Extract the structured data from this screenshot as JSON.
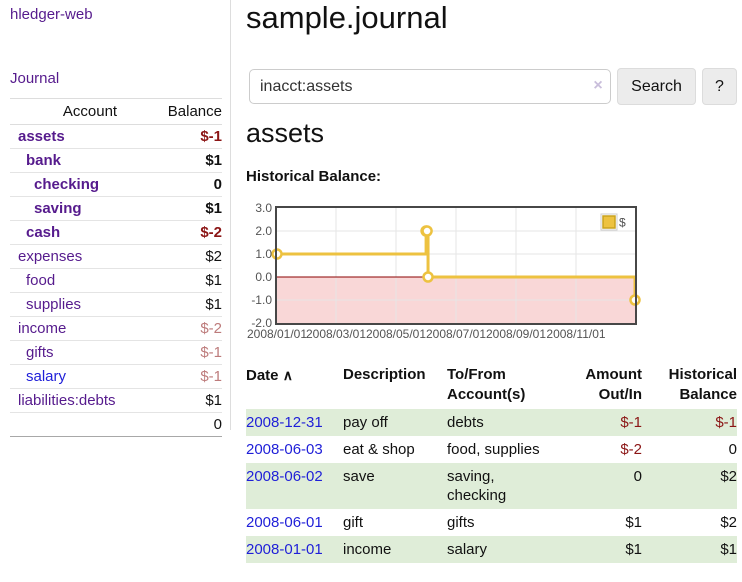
{
  "colors": {
    "brand_purple": "#561b8d",
    "link_blue": "#1f1fd8",
    "negative_red": "#8b1515",
    "negative_faded_red": "#bd7b7b",
    "row_green": "#dfedd8",
    "series_yellow": "#edc240",
    "negative_region_pink": "#f9d7d7",
    "zero_line_red": "#8b0000"
  },
  "icons": {
    "clear_search": "×",
    "sort_ascending": "∧"
  },
  "sidebar": {
    "brand": "hledger-web",
    "journal": "Journal",
    "accounts": {
      "header_account": "Account",
      "header_balance": "Balance",
      "rows": [
        {
          "name": "assets",
          "balance": "$-1"
        },
        {
          "name": "bank",
          "balance": "$1"
        },
        {
          "name": "checking",
          "balance": "0"
        },
        {
          "name": "saving",
          "balance": "$1"
        },
        {
          "name": "cash",
          "balance": "$-2"
        },
        {
          "name": "expenses",
          "balance": "$2"
        },
        {
          "name": "food",
          "balance": "$1"
        },
        {
          "name": "supplies",
          "balance": "$1"
        },
        {
          "name": "income",
          "balance": "$-2"
        },
        {
          "name": "gifts",
          "balance": "$-1"
        },
        {
          "name": "salary",
          "balance": "$-1"
        },
        {
          "name": "liabilities:debts",
          "balance": "$1"
        }
      ],
      "total": "0"
    }
  },
  "main": {
    "title": "sample.journal",
    "search": {
      "value": "inacct:assets",
      "search_label": "Search",
      "help_label": "?"
    },
    "account_heading": "assets",
    "chart_label": "Historical Balance:"
  },
  "chart_data": {
    "type": "line",
    "title": "Historical Balance:",
    "legend": "$",
    "legend_position": "top-right",
    "series": [
      {
        "name": "$",
        "points": [
          [
            "2008-01-01",
            1
          ],
          [
            "2008-06-01",
            2
          ],
          [
            "2008-06-02",
            2
          ],
          [
            "2008-06-03",
            0
          ],
          [
            "2008-12-31",
            -1
          ]
        ]
      }
    ],
    "step": true,
    "xlim": [
      "2008-01-01",
      "2008-12-31"
    ],
    "ylim": [
      -2,
      3
    ],
    "xticks": [
      "2008/01/01",
      "2008/03/01",
      "2008/05/01",
      "2008/07/01",
      "2008/09/01",
      "2008/11/01"
    ],
    "yticks": [
      "3.0",
      "2.0",
      "1.0",
      "0.0",
      "-1.0",
      "-2.0"
    ],
    "grid": true,
    "negative_region_shaded": true
  },
  "register": {
    "headers": {
      "date": "Date",
      "description": "Description",
      "to_from": [
        "To/From",
        "Account(s)"
      ],
      "amount": [
        "Amount",
        "Out/In"
      ],
      "balance": [
        "Historical",
        "Balance"
      ]
    },
    "rows": [
      {
        "date": "2008-12-31",
        "description": "pay off",
        "to_from": [
          "debts"
        ],
        "amount": "$-1",
        "balance": "$-1"
      },
      {
        "date": "2008-06-03",
        "description": "eat & shop",
        "to_from": [
          "food, supplies"
        ],
        "amount": "$-2",
        "balance": "0"
      },
      {
        "date": "2008-06-02",
        "description": "save",
        "to_from": [
          "saving,",
          "checking"
        ],
        "amount": "0",
        "balance": "$2"
      },
      {
        "date": "2008-06-01",
        "description": "gift",
        "to_from": [
          "gifts"
        ],
        "amount": "$1",
        "balance": "$2"
      },
      {
        "date": "2008-01-01",
        "description": "income",
        "to_from": [
          "salary"
        ],
        "amount": "$1",
        "balance": "$1"
      }
    ]
  }
}
